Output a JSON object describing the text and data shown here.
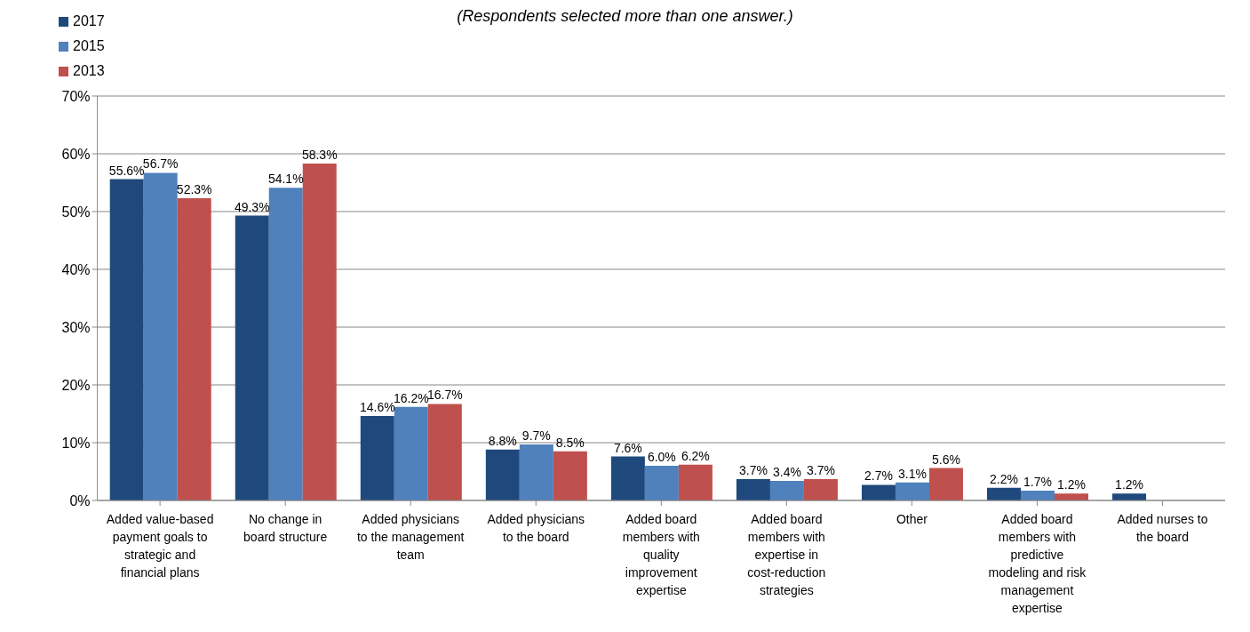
{
  "chart_data": {
    "type": "bar",
    "subtitle": "(Respondents selected more than one answer.)",
    "categories": [
      "Added value-based payment goals to strategic and financial plans",
      "No change in board structure",
      "Added physicians to the management team",
      "Added physicians to the board",
      "Added board members with quality improvement expertise",
      "Added board members with expertise in cost-reduction strategies",
      "Other",
      "Added board members with predictive modeling and risk management expertise",
      "Added nurses to the board"
    ],
    "series": [
      {
        "name": "2017",
        "color": "#1f497d",
        "values": [
          55.6,
          49.3,
          14.6,
          8.8,
          7.6,
          3.7,
          2.7,
          2.2,
          1.2
        ],
        "value_labels": [
          "55.6%",
          "49.3%",
          "14.6%",
          "8.8%",
          "7.6%",
          "3.7%",
          "2.7%",
          "2.2%",
          "1.2%"
        ]
      },
      {
        "name": "2015",
        "color": "#4f81bd",
        "values": [
          56.7,
          54.1,
          16.2,
          9.7,
          6.0,
          3.4,
          3.1,
          1.7,
          null
        ],
        "value_labels": [
          "56.7%",
          "54.1%",
          "16.2%",
          "9.7%",
          "6.0%",
          "3.4%",
          "3.1%",
          "1.7%",
          null
        ]
      },
      {
        "name": "2013",
        "color": "#c0504d",
        "values": [
          52.3,
          58.3,
          16.7,
          8.5,
          6.2,
          3.7,
          5.6,
          1.2,
          null
        ],
        "value_labels": [
          "52.3%",
          "58.3%",
          "16.7%",
          "8.5%",
          "6.2%",
          "3.7%",
          "5.6%",
          "1.2%",
          null
        ]
      }
    ],
    "ylim": [
      0,
      70
    ],
    "yticks": [
      {
        "value": 0,
        "label": "0%"
      },
      {
        "value": 10,
        "label": "10%"
      },
      {
        "value": 20,
        "label": "20%"
      },
      {
        "value": 30,
        "label": "30%"
      },
      {
        "value": 40,
        "label": "40%"
      },
      {
        "value": 50,
        "label": "50%"
      },
      {
        "value": 60,
        "label": "60%"
      },
      {
        "value": 70,
        "label": "70%"
      }
    ],
    "grid": "y",
    "legend": "top left"
  }
}
